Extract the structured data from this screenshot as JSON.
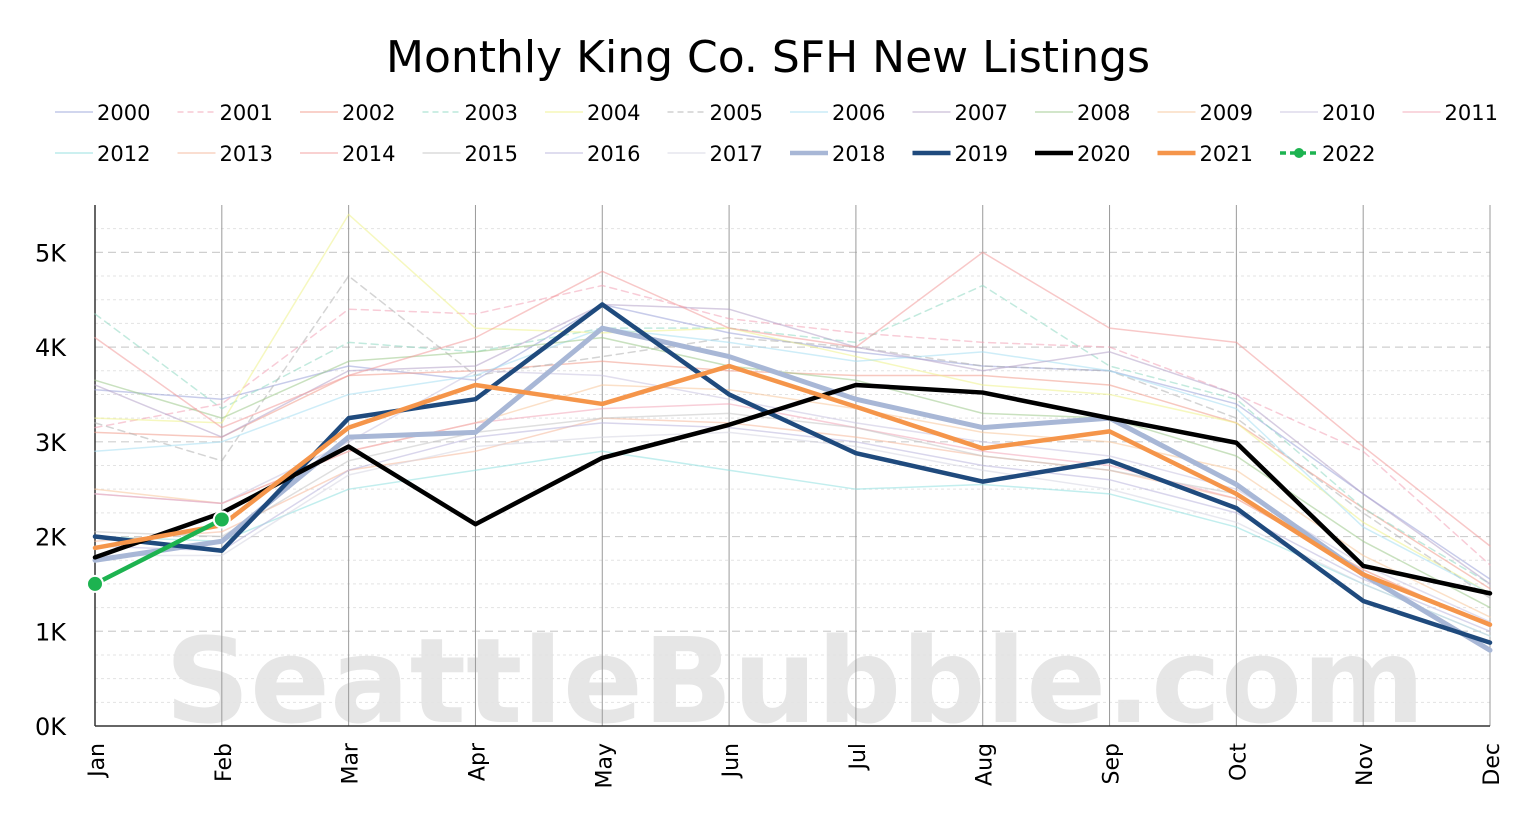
{
  "chart_data": {
    "type": "line",
    "title": "Monthly King Co. SFH New Listings",
    "xlabel": "",
    "ylabel": "",
    "watermark": "SeattleBubble.com",
    "categories": [
      "Jan",
      "Feb",
      "Mar",
      "Apr",
      "May",
      "Jun",
      "Jul",
      "Aug",
      "Sep",
      "Oct",
      "Nov",
      "Dec"
    ],
    "y_ticks": [
      0,
      1000,
      2000,
      3000,
      4000,
      5000
    ],
    "y_tick_labels": [
      "0K",
      "1K",
      "2K",
      "3K",
      "4K",
      "5K"
    ],
    "ylim": [
      0,
      5500
    ],
    "grid": true,
    "legend_position": "top",
    "series": [
      {
        "name": "2000",
        "color": "#9aa3d9",
        "style": "solid",
        "emphasis": false,
        "values": [
          3550,
          3450,
          3800,
          3650,
          4450,
          4150,
          3950,
          3800,
          3750,
          3400,
          2450,
          1550
        ]
      },
      {
        "name": "2001",
        "color": "#f2a3b6",
        "style": "dashed",
        "emphasis": false,
        "values": [
          3150,
          3400,
          4400,
          4350,
          4650,
          4300,
          4150,
          4050,
          4000,
          3500,
          2900,
          1700
        ]
      },
      {
        "name": "2002",
        "color": "#f19a8a",
        "style": "solid",
        "emphasis": false,
        "values": [
          3100,
          3050,
          3700,
          3750,
          3850,
          3750,
          3700,
          3700,
          3600,
          3200,
          2300,
          1450
        ]
      },
      {
        "name": "2003",
        "color": "#8fd9c3",
        "style": "dashed",
        "emphasis": false,
        "values": [
          4350,
          3350,
          4050,
          3950,
          4200,
          4200,
          4050,
          4650,
          3800,
          3450,
          2300,
          1500
        ]
      },
      {
        "name": "2004",
        "color": "#eef28a",
        "style": "solid",
        "emphasis": false,
        "values": [
          3250,
          3200,
          5400,
          4200,
          4150,
          4200,
          3900,
          3600,
          3500,
          3200,
          2150,
          1400
        ]
      },
      {
        "name": "2005",
        "color": "#b0b0b0",
        "style": "dashed",
        "emphasis": false,
        "values": [
          3200,
          2800,
          4750,
          3700,
          3900,
          4100,
          4000,
          3800,
          3750,
          3250,
          2250,
          1350
        ]
      },
      {
        "name": "2006",
        "color": "#a6dff2",
        "style": "solid",
        "emphasis": false,
        "values": [
          2900,
          3000,
          3500,
          3700,
          4200,
          4050,
          3850,
          3950,
          3750,
          3350,
          2100,
          1400
        ]
      },
      {
        "name": "2007",
        "color": "#b5a3c9",
        "style": "solid",
        "emphasis": false,
        "values": [
          3600,
          3050,
          3750,
          3800,
          4450,
          4400,
          4000,
          3750,
          3950,
          3500,
          2450,
          1500
        ]
      },
      {
        "name": "2008",
        "color": "#9cc98a",
        "style": "solid",
        "emphasis": false,
        "values": [
          3650,
          3250,
          3850,
          3950,
          4100,
          3800,
          3650,
          3300,
          3250,
          2850,
          1950,
          1250
        ]
      },
      {
        "name": "2009",
        "color": "#f7c79a",
        "style": "solid",
        "emphasis": false,
        "values": [
          2500,
          2350,
          2900,
          3200,
          3600,
          3550,
          3350,
          3100,
          3000,
          2700,
          1800,
          1150
        ]
      },
      {
        "name": "2010",
        "color": "#c9c2e0",
        "style": "solid",
        "emphasis": false,
        "values": [
          2450,
          2350,
          3000,
          3750,
          3700,
          3450,
          3200,
          3000,
          2850,
          2500,
          1700,
          1100
        ]
      },
      {
        "name": "2011",
        "color": "#f2a6b8",
        "style": "solid",
        "emphasis": false,
        "values": [
          2450,
          2350,
          2900,
          3200,
          3350,
          3400,
          3150,
          2900,
          2750,
          2400,
          1650,
          1050
        ]
      },
      {
        "name": "2012",
        "color": "#8fe0e0",
        "style": "solid",
        "emphasis": false,
        "values": [
          2000,
          1950,
          2500,
          2700,
          2900,
          2700,
          2500,
          2550,
          2450,
          2100,
          1500,
          950
        ]
      },
      {
        "name": "2013",
        "color": "#f5b89a",
        "style": "solid",
        "emphasis": false,
        "values": [
          1950,
          2050,
          2700,
          2900,
          3250,
          3200,
          3050,
          2850,
          2700,
          2400,
          1650,
          1050
        ]
      },
      {
        "name": "2014",
        "color": "#f29a9a",
        "style": "solid",
        "emphasis": false,
        "values": [
          4100,
          3150,
          3700,
          4100,
          4800,
          4200,
          4000,
          5000,
          4200,
          4050,
          2950,
          1900
        ]
      },
      {
        "name": "2015",
        "color": "#c4c4c4",
        "style": "solid",
        "emphasis": false,
        "values": [
          2050,
          2000,
          2800,
          3100,
          3250,
          3300,
          3150,
          2850,
          2700,
          2450,
          1600,
          1050
        ]
      },
      {
        "name": "2016",
        "color": "#b9b4dc",
        "style": "solid",
        "emphasis": false,
        "values": [
          1900,
          1850,
          2700,
          3050,
          3200,
          3150,
          3000,
          2750,
          2600,
          2250,
          1550,
          1000
        ]
      },
      {
        "name": "2017",
        "color": "#d5d5e2",
        "style": "solid",
        "emphasis": false,
        "values": [
          1800,
          1800,
          2650,
          2950,
          3050,
          3100,
          2950,
          2700,
          2500,
          2150,
          1500,
          950
        ]
      },
      {
        "name": "2018",
        "color": "#a8b7d6",
        "style": "solid",
        "emphasis": true,
        "values": [
          1750,
          1950,
          3050,
          3100,
          4200,
          3900,
          3450,
          3150,
          3250,
          2550,
          1600,
          800
        ]
      },
      {
        "name": "2019",
        "color": "#1f4a7d",
        "style": "solid",
        "emphasis": true,
        "values": [
          2000,
          1850,
          3250,
          3450,
          4450,
          3500,
          2880,
          2580,
          2800,
          2300,
          1320,
          880
        ]
      },
      {
        "name": "2020",
        "color": "#000000",
        "style": "solid",
        "emphasis": true,
        "values": [
          1780,
          2250,
          2950,
          2130,
          2830,
          3180,
          3600,
          3520,
          3250,
          2990,
          1690,
          1400
        ]
      },
      {
        "name": "2021",
        "color": "#f5954a",
        "style": "solid",
        "emphasis": true,
        "values": [
          1880,
          2120,
          3150,
          3600,
          3400,
          3800,
          3370,
          2930,
          3110,
          2450,
          1600,
          1070
        ]
      },
      {
        "name": "2022",
        "color": "#1db350",
        "style": "dashed",
        "emphasis": true,
        "values": [
          1500,
          2180,
          null,
          null,
          null,
          null,
          null,
          null,
          null,
          null,
          null,
          null
        ]
      }
    ]
  }
}
